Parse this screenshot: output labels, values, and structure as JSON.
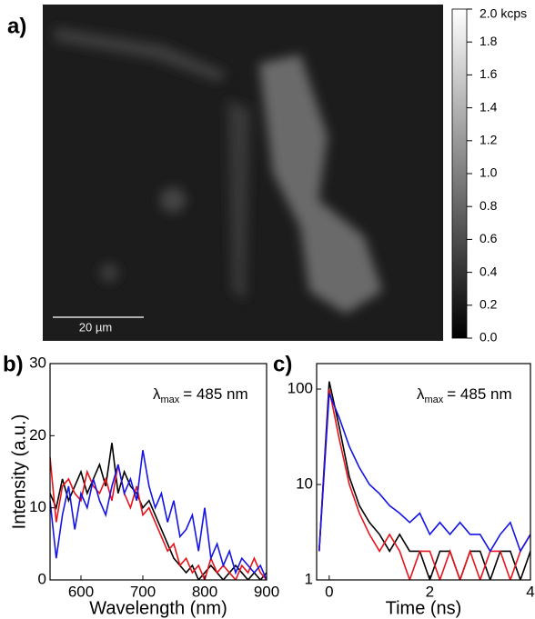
{
  "chart_data": [
    {
      "type": "image",
      "label": "a)",
      "scale_bar": "20 µm",
      "colorbar": {
        "lim": [
          0,
          2
        ],
        "colormap": [
          "#000000",
          "#ffffff"
        ],
        "ticks": [
          {
            "value": 0,
            "label": "0.0"
          },
          {
            "value": 0.2,
            "label": "0.2"
          },
          {
            "value": 0.4,
            "label": "0.4"
          },
          {
            "value": 0.6,
            "label": "0.6"
          },
          {
            "value": 0.8,
            "label": "0.8"
          },
          {
            "value": 1.0,
            "label": "1.0"
          },
          {
            "value": 1.2,
            "label": "1.2"
          },
          {
            "value": 1.4,
            "label": "1.4"
          },
          {
            "value": 1.6,
            "label": "1.6"
          },
          {
            "value": 1.8,
            "label": "1.8"
          },
          {
            "value": 2.0,
            "label": "2.0 kcps"
          }
        ]
      }
    },
    {
      "type": "line",
      "label": "b)",
      "xlabel": "Wavelength (nm)",
      "ylabel": "Intensity (a.u.)",
      "annotation": {
        "symbol": "λ",
        "sub": "max",
        "text": "= 485 nm"
      },
      "xlim": [
        550,
        900
      ],
      "ylim": [
        0,
        30
      ],
      "xticks": [
        600,
        700,
        800,
        900
      ],
      "yticks": [
        0,
        10,
        20,
        30
      ],
      "log": false,
      "x": [
        550,
        560,
        570,
        580,
        590,
        600,
        610,
        620,
        630,
        640,
        650,
        660,
        670,
        680,
        690,
        700,
        710,
        720,
        730,
        740,
        750,
        760,
        770,
        780,
        790,
        800,
        810,
        820,
        830,
        840,
        850,
        860,
        870,
        880,
        890,
        900
      ],
      "series": [
        {
          "color": "#000000",
          "values": [
            12,
            10,
            14,
            11,
            13,
            15,
            12,
            14,
            16,
            13,
            19,
            12,
            15,
            13,
            12,
            10,
            11,
            9,
            7,
            5,
            3,
            2,
            1,
            2,
            0,
            1,
            2,
            1,
            0,
            1,
            2,
            1,
            0,
            1,
            0,
            1
          ]
        },
        {
          "color": "#e8141b",
          "values": [
            17,
            8,
            13,
            14,
            12,
            11,
            15,
            13,
            12,
            14,
            11,
            16,
            12,
            10,
            13,
            9,
            10,
            8,
            6,
            4,
            5,
            2,
            3,
            1,
            2,
            0,
            3,
            1,
            2,
            1,
            0,
            2,
            1,
            3,
            1,
            0
          ]
        },
        {
          "color": "#1414e6",
          "values": [
            11,
            3,
            9,
            13,
            7,
            12,
            10,
            14,
            11,
            9,
            13,
            16,
            12,
            14,
            11,
            18,
            13,
            10,
            12,
            8,
            11,
            6,
            7,
            9,
            4,
            10,
            3,
            5,
            2,
            4,
            1,
            3,
            2,
            1,
            2,
            0
          ]
        }
      ]
    },
    {
      "type": "line",
      "label": "c)",
      "xlabel": "Time (ns)",
      "annotation": {
        "symbol": "λ",
        "sub": "max",
        "text": "= 485 nm"
      },
      "xlim": [
        -0.25,
        4
      ],
      "ylim": [
        1,
        185
      ],
      "xticks": [
        0,
        2,
        4
      ],
      "yticks": [
        1,
        10,
        100
      ],
      "log": true,
      "x": [
        -0.2,
        0,
        0.2,
        0.4,
        0.6,
        0.8,
        1,
        1.2,
        1.4,
        1.6,
        1.8,
        2,
        2.2,
        2.4,
        2.6,
        2.8,
        3,
        3.2,
        3.4,
        3.6,
        3.8,
        4
      ],
      "series": [
        {
          "color": "#000000",
          "values": [
            2,
            120,
            40,
            12,
            6,
            4,
            3,
            2,
            3,
            2,
            2,
            1,
            2,
            2,
            1,
            2,
            2,
            1,
            2,
            2,
            1,
            2
          ]
        },
        {
          "color": "#e8141b",
          "values": [
            2,
            100,
            30,
            10,
            5,
            3,
            2,
            3,
            2,
            1,
            2,
            2,
            1,
            2,
            1,
            2,
            1,
            2,
            2,
            1,
            2,
            3
          ]
        },
        {
          "color": "#1414e6",
          "values": [
            2,
            90,
            50,
            25,
            15,
            10,
            8,
            6,
            5,
            4,
            5,
            3,
            4,
            3,
            4,
            3,
            3,
            2,
            3,
            4,
            2,
            3
          ]
        }
      ]
    }
  ]
}
